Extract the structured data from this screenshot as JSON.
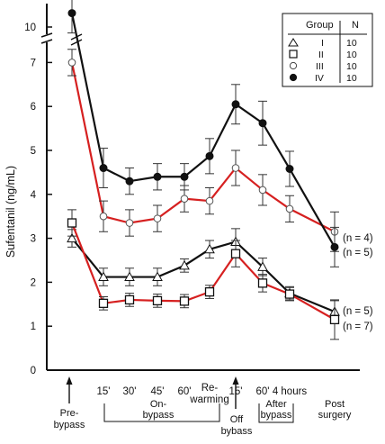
{
  "chart_data": {
    "type": "line",
    "ylabel": "Sufentanil (ng/mL)",
    "ylim": [
      0,
      10.5
    ],
    "y_ticks": [
      "0",
      "1",
      "2",
      "3",
      "4",
      "5",
      "6",
      "7",
      "10"
    ],
    "y_axis_break": "between 7 and 10",
    "x_labels": [
      "15'",
      "30'",
      "45'",
      "60'",
      "Re-\nwarming",
      "15'",
      "60'",
      "4 hours"
    ],
    "x_label_under_last": "Post\nsurgery",
    "phases": {
      "pre_bypass": "Pre-\nbypass",
      "on_bypass": "On-\nbypass",
      "off_bypass": "Off\nbybass",
      "after_bypass": "After\nbypass"
    },
    "categories": [
      "Pre-bypass",
      "15' on",
      "30' on",
      "45' on",
      "60' on",
      "Re-warming",
      "Off bypass",
      "15' after",
      "60' after",
      "4 hours post"
    ],
    "series": [
      {
        "name": "I",
        "marker": "triangle",
        "line_color": "#111111",
        "values": [
          3.0,
          2.12,
          2.12,
          2.12,
          2.38,
          2.75,
          2.92,
          2.35,
          1.75,
          1.33
        ],
        "err": [
          0.2,
          0.2,
          0.2,
          0.2,
          0.15,
          0.2,
          0.3,
          0.2,
          0.15,
          0.25
        ]
      },
      {
        "name": "II",
        "marker": "square",
        "line_color": "#d62020",
        "values": [
          3.35,
          1.52,
          1.6,
          1.58,
          1.57,
          1.78,
          2.65,
          1.98,
          1.73,
          1.15
        ],
        "err": [
          0.3,
          0.15,
          0.15,
          0.15,
          0.15,
          0.15,
          0.3,
          0.2,
          0.15,
          0.45
        ]
      },
      {
        "name": "III",
        "marker": "open-circle",
        "line_color": "#d62020",
        "values": [
          7.0,
          3.5,
          3.35,
          3.45,
          3.9,
          3.85,
          4.6,
          4.1,
          3.67,
          3.15
        ],
        "err": [
          0.3,
          0.35,
          0.3,
          0.3,
          0.3,
          0.3,
          0.4,
          0.35,
          0.3,
          0.45
        ]
      },
      {
        "name": "IV",
        "marker": "filled-circle",
        "line_color": "#111111",
        "values": [
          10.35,
          4.6,
          4.3,
          4.4,
          4.4,
          4.87,
          6.05,
          5.62,
          4.58,
          2.8
        ],
        "err": [
          0.5,
          0.45,
          0.3,
          0.3,
          0.3,
          0.4,
          0.45,
          0.5,
          0.4,
          0.45
        ]
      }
    ],
    "legend": {
      "header_group": "Group",
      "header_n": "N",
      "rows": [
        {
          "group": "I",
          "n": "10"
        },
        {
          "group": "II",
          "n": "10"
        },
        {
          "group": "III",
          "n": "10"
        },
        {
          "group": "IV",
          "n": "10"
        }
      ],
      "placement": "top-right"
    },
    "annotations": [
      "(n = 4)",
      "(n = 5)",
      "(n = 5)",
      "(n = 7)"
    ],
    "grid": false
  }
}
